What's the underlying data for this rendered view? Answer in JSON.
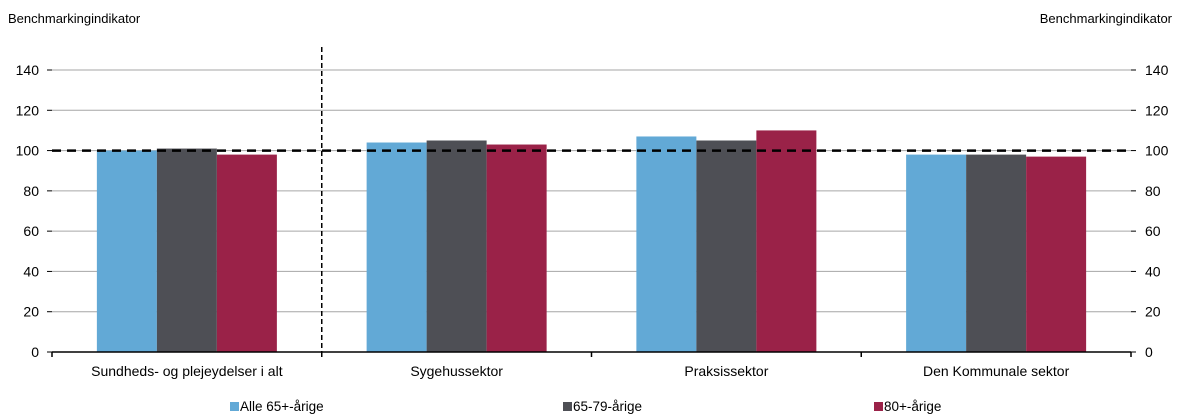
{
  "chart_data": {
    "type": "bar",
    "ylabel_left": "Benchmarkingindikator",
    "ylabel_right": "Benchmarkingindikator",
    "categories": [
      "Sundheds- og plejeydelser i alt",
      "Sygehussektor",
      "Praksissektor",
      "Den Kommunale sektor"
    ],
    "series": [
      {
        "name": "Alle 65+-årige",
        "color": "#62a9d6",
        "values": [
          100,
          104,
          107,
          98
        ]
      },
      {
        "name": "65-79-årige",
        "color": "#4e4f55",
        "values": [
          101,
          105,
          105,
          98
        ]
      },
      {
        "name": "80+-årige",
        "color": "#9a2248",
        "values": [
          98,
          103,
          110,
          97
        ]
      }
    ],
    "ylim": [
      0,
      140
    ],
    "yticks": [
      0,
      20,
      40,
      60,
      80,
      100,
      120,
      140
    ],
    "reference_line": 100,
    "grid": true,
    "legend_position": "bottom"
  }
}
